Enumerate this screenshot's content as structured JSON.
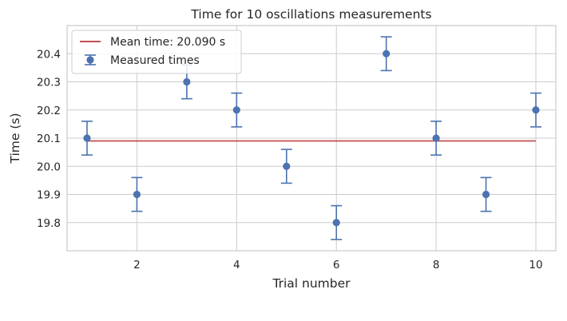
{
  "chart_data": {
    "type": "scatter",
    "title": "Time for 10 oscillations measurements",
    "xlabel": "Trial number",
    "ylabel": "Time (s)",
    "xlim": [
      0.6,
      10.4
    ],
    "ylim": [
      19.7,
      20.5
    ],
    "xticks": [
      2,
      4,
      6,
      8,
      10
    ],
    "yticks": [
      19.8,
      19.9,
      20.0,
      20.1,
      20.2,
      20.3,
      20.4
    ],
    "ytick_labels": [
      "19.8",
      "19.9",
      "20.0",
      "20.1",
      "20.2",
      "20.3",
      "20.4"
    ],
    "grid": true,
    "legend_position": "top-left",
    "series": [
      {
        "name": "Measured times",
        "kind": "errorbar",
        "color": "#4c72b0",
        "x": [
          1,
          2,
          3,
          4,
          5,
          6,
          7,
          8,
          9,
          10
        ],
        "y": [
          20.1,
          19.9,
          20.3,
          20.2,
          20.0,
          19.8,
          20.4,
          20.1,
          19.9,
          20.2
        ],
        "yerr": 0.06
      },
      {
        "name": "Mean time: 20.090 s",
        "kind": "line",
        "color": "#c44e52",
        "x": [
          1,
          10
        ],
        "y": [
          20.09,
          20.09
        ]
      }
    ]
  }
}
